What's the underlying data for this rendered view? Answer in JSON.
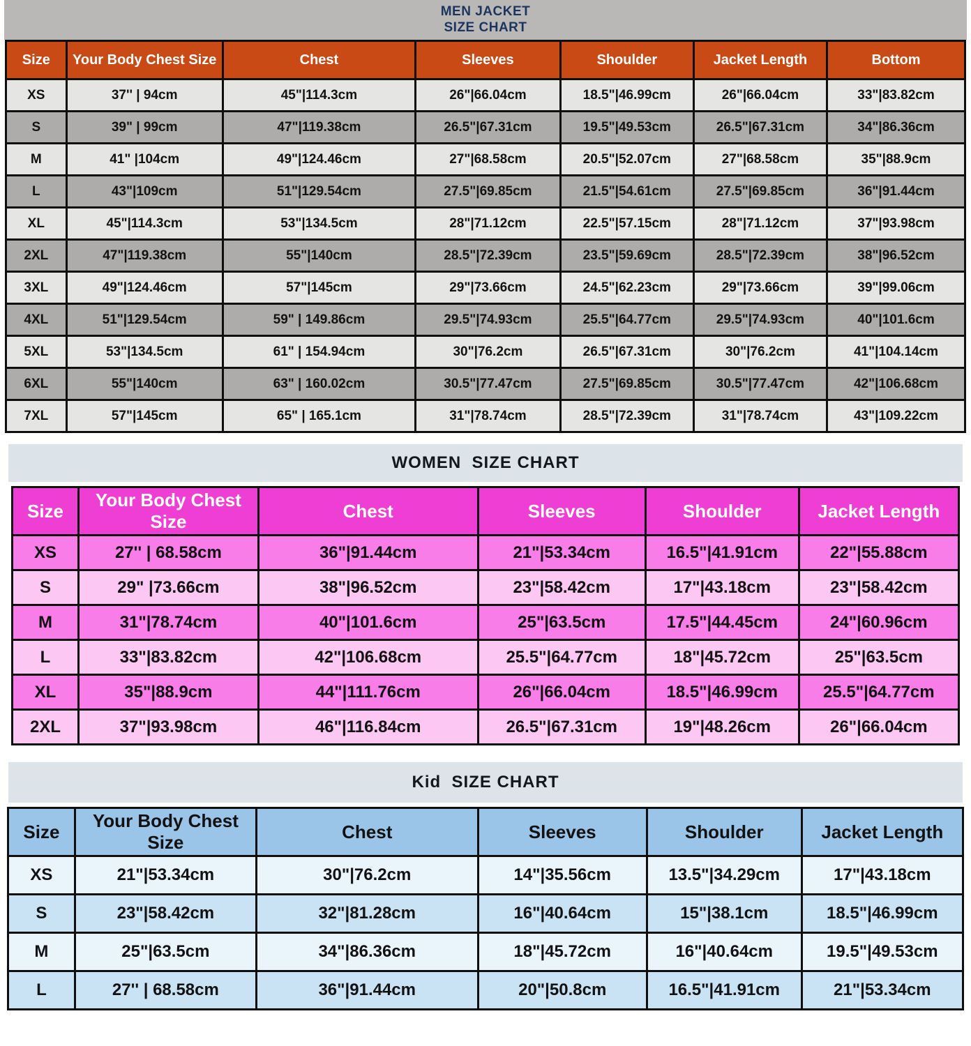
{
  "men": {
    "title_line1": "MEN JACKET",
    "title_line2": "SIZE CHART",
    "colors": {
      "banner_bg": "#b9b8b6",
      "title_color": "#1c355e",
      "header_bg": "#ca4a16",
      "header_text": "#ffffff",
      "row_a": "#e5e5e3",
      "row_b": "#adacaa"
    },
    "columns": [
      "Size",
      "Your Body Chest Size",
      "Chest",
      "Sleeves",
      "Shoulder",
      "Jacket Length",
      "Bottom"
    ],
    "rows": [
      [
        "XS",
        "37'' | 94cm",
        "45\"|114.3cm",
        "26\"|66.04cm",
        "18.5\"|46.99cm",
        "26\"|66.04cm",
        "33\"|83.82cm"
      ],
      [
        "S",
        "39\" | 99cm",
        "47\"|119.38cm",
        "26.5\"|67.31cm",
        "19.5\"|49.53cm",
        "26.5\"|67.31cm",
        "34\"|86.36cm"
      ],
      [
        "M",
        "41\" |104cm",
        "49\"|124.46cm",
        "27\"|68.58cm",
        "20.5\"|52.07cm",
        "27\"|68.58cm",
        "35\"|88.9cm"
      ],
      [
        "L",
        "43\"|109cm",
        "51\"|129.54cm",
        "27.5\"|69.85cm",
        "21.5\"|54.61cm",
        "27.5\"|69.85cm",
        "36\"|91.44cm"
      ],
      [
        "XL",
        "45\"|114.3cm",
        "53\"|134.5cm",
        "28\"|71.12cm",
        "22.5\"|57.15cm",
        "28\"|71.12cm",
        "37\"|93.98cm"
      ],
      [
        "2XL",
        "47\"|119.38cm",
        "55\"|140cm",
        "28.5\"|72.39cm",
        "23.5\"|59.69cm",
        "28.5\"|72.39cm",
        "38\"|96.52cm"
      ],
      [
        "3XL",
        "49\"|124.46cm",
        "57\"|145cm",
        "29\"|73.66cm",
        "24.5\"|62.23cm",
        "29\"|73.66cm",
        "39\"|99.06cm"
      ],
      [
        "4XL",
        "51\"|129.54cm",
        "59\" | 149.86cm",
        "29.5\"|74.93cm",
        "25.5\"|64.77cm",
        "29.5\"|74.93cm",
        "40\"|101.6cm"
      ],
      [
        "5XL",
        "53\"|134.5cm",
        "61\" | 154.94cm",
        "30\"|76.2cm",
        "26.5\"|67.31cm",
        "30\"|76.2cm",
        "41\"|104.14cm"
      ],
      [
        "6XL",
        "55\"|140cm",
        "63\" | 160.02cm",
        "30.5\"|77.47cm",
        "27.5\"|69.85cm",
        "30.5\"|77.47cm",
        "42\"|106.68cm"
      ],
      [
        "7XL",
        "57\"|145cm",
        "65\" | 165.1cm",
        "31\"|78.74cm",
        "28.5\"|72.39cm",
        "31\"|78.74cm",
        "43\"|109.22cm"
      ]
    ]
  },
  "women": {
    "title": "WOMEN  SIZE CHART",
    "colors": {
      "banner_bg": "#dde4e9",
      "title_color": "#15151f",
      "header_bg": "#ef3ed3",
      "header_text": "#ffffff",
      "row_a": "#f87de8",
      "row_b": "#fcc8f3"
    },
    "columns": [
      "Size",
      "Your Body Chest Size",
      "Chest",
      "Sleeves",
      "Shoulder",
      "Jacket Length"
    ],
    "rows": [
      [
        "XS",
        "27'' | 68.58cm",
        "36\"|91.44cm",
        "21\"|53.34cm",
        "16.5\"|41.91cm",
        "22\"|55.88cm"
      ],
      [
        "S",
        "29\" |73.66cm",
        "38\"|96.52cm",
        "23\"|58.42cm",
        "17\"|43.18cm",
        "23\"|58.42cm"
      ],
      [
        "M",
        "31\"|78.74cm",
        "40\"|101.6cm",
        "25\"|63.5cm",
        "17.5\"|44.45cm",
        "24\"|60.96cm"
      ],
      [
        "L",
        "33\"|83.82cm",
        "42\"|106.68cm",
        "25.5\"|64.77cm",
        "18\"|45.72cm",
        "25\"|63.5cm"
      ],
      [
        "XL",
        "35\"|88.9cm",
        "44\"|111.76cm",
        "26\"|66.04cm",
        "18.5\"|46.99cm",
        "25.5\"|64.77cm"
      ],
      [
        "2XL",
        "37\"|93.98cm",
        "46\"|116.84cm",
        "26.5\"|67.31cm",
        "19\"|48.26cm",
        "26\"|66.04cm"
      ]
    ]
  },
  "kid": {
    "title": "Kid  SIZE CHART",
    "colors": {
      "banner_bg": "#dde4e9",
      "title_color": "#15151f",
      "header_bg": "#9ac4e8",
      "header_text": "#121212",
      "row_a": "#eaf4fb",
      "row_b": "#c9e2f4"
    },
    "columns": [
      "Size",
      "Your Body Chest Size",
      "Chest",
      "Sleeves",
      "Shoulder",
      "Jacket Length"
    ],
    "rows": [
      [
        "XS",
        "21\"|53.34cm",
        "30\"|76.2cm",
        "14\"|35.56cm",
        "13.5\"|34.29cm",
        "17\"|43.18cm"
      ],
      [
        "S",
        "23\"|58.42cm",
        "32\"|81.28cm",
        "16\"|40.64cm",
        "15\"|38.1cm",
        "18.5\"|46.99cm"
      ],
      [
        "M",
        "25\"|63.5cm",
        "34\"|86.36cm",
        "18\"|45.72cm",
        "16\"|40.64cm",
        "19.5\"|49.53cm"
      ],
      [
        "L",
        "27'' | 68.58cm",
        "36\"|91.44cm",
        "20\"|50.8cm",
        "16.5\"|41.91cm",
        "21\"|53.34cm"
      ]
    ]
  }
}
